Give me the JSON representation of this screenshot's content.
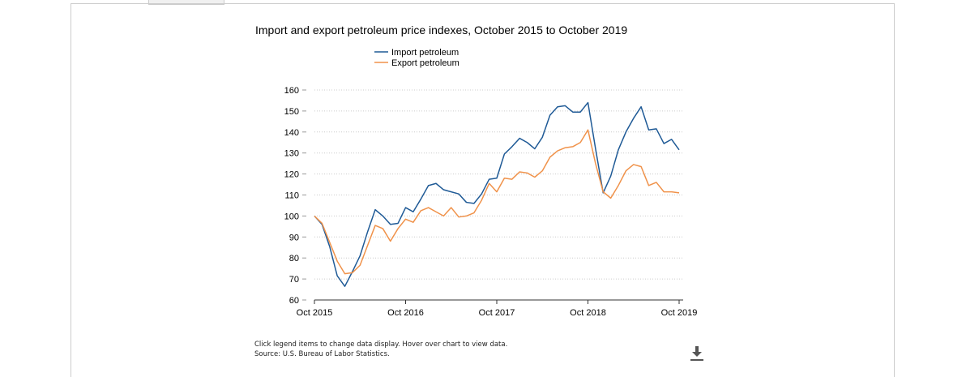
{
  "chart_data": {
    "type": "line",
    "title": "Import and export petroleum price indexes, October 2015 to October 2019",
    "xlabel": "",
    "ylabel": "",
    "x_tick_labels": [
      "Oct 2015",
      "Oct 2016",
      "Oct 2017",
      "Oct 2018",
      "Oct 2019"
    ],
    "y_ticks": [
      60,
      70,
      80,
      90,
      100,
      110,
      120,
      130,
      140,
      150,
      160
    ],
    "ylim": [
      60,
      160
    ],
    "grid": "horizontal dotted",
    "legend_placement": "top-center",
    "x_months": [
      "2015-10",
      "2015-11",
      "2015-12",
      "2016-01",
      "2016-02",
      "2016-03",
      "2016-04",
      "2016-05",
      "2016-06",
      "2016-07",
      "2016-08",
      "2016-09",
      "2016-10",
      "2016-11",
      "2016-12",
      "2017-01",
      "2017-02",
      "2017-03",
      "2017-04",
      "2017-05",
      "2017-06",
      "2017-07",
      "2017-08",
      "2017-09",
      "2017-10",
      "2017-11",
      "2017-12",
      "2018-01",
      "2018-02",
      "2018-03",
      "2018-04",
      "2018-05",
      "2018-06",
      "2018-07",
      "2018-08",
      "2018-09",
      "2018-10",
      "2018-11",
      "2018-12",
      "2019-01",
      "2019-02",
      "2019-03",
      "2019-04",
      "2019-05",
      "2019-06",
      "2019-07",
      "2019-08",
      "2019-09",
      "2019-10"
    ],
    "series": [
      {
        "name": "Import petroleum",
        "color": "#1f5a96",
        "values": [
          100.0,
          96.0,
          85.5,
          71.5,
          66.5,
          73.5,
          81.0,
          92.5,
          103.0,
          100.0,
          96.0,
          96.5,
          104.0,
          102.0,
          108.0,
          114.5,
          115.5,
          112.5,
          111.5,
          110.5,
          106.5,
          106.0,
          110.5,
          117.5,
          118.0,
          129.5,
          133.0,
          137.0,
          135.0,
          132.0,
          137.5,
          148.0,
          152.0,
          152.5,
          149.5,
          149.5,
          154.0,
          132.0,
          111.0,
          119.0,
          131.5,
          140.0,
          146.5,
          152.0,
          141.0,
          141.5,
          134.5,
          136.5,
          131.5
        ]
      },
      {
        "name": "Export petroleum",
        "color": "#f0924a",
        "values": [
          100.0,
          96.5,
          87.5,
          78.5,
          72.5,
          73.0,
          76.5,
          86.0,
          95.5,
          94.0,
          88.0,
          94.0,
          98.5,
          97.0,
          102.5,
          104.0,
          102.0,
          100.0,
          104.0,
          99.5,
          100.0,
          101.5,
          107.5,
          115.5,
          111.5,
          118.0,
          117.5,
          121.0,
          120.5,
          118.5,
          121.5,
          128.0,
          131.0,
          132.5,
          133.0,
          135.0,
          141.0,
          125.0,
          111.5,
          108.5,
          114.5,
          121.5,
          124.5,
          123.5,
          114.5,
          116.0,
          111.5,
          111.5,
          111.0
        ]
      }
    ]
  },
  "footnote": {
    "line1": "Click legend items to change data display. Hover over chart to view data.",
    "line2": "Source: U.S. Bureau of Labor Statistics."
  },
  "icons": {
    "download": "download-icon"
  },
  "colors": {
    "grid": "#cccccc",
    "axis": "#333333"
  }
}
